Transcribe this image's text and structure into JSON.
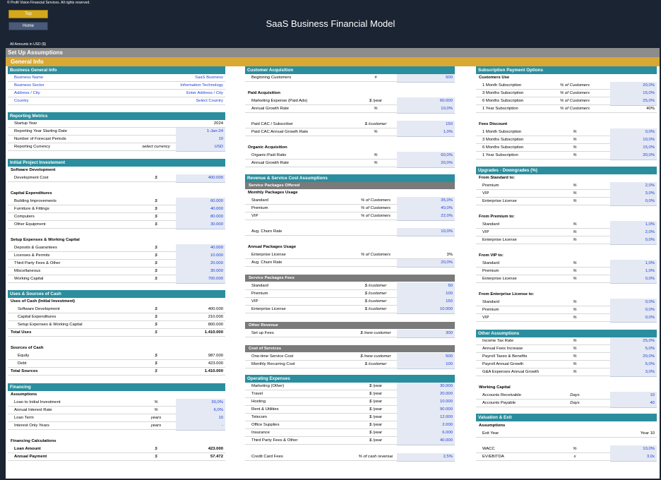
{
  "header": {
    "copyright": "© Profit Vision Financial Services. All rights reserved.",
    "top_button": "Top",
    "home_button": "Home",
    "title": "SaaS Business Financial Model",
    "amounts_note": "All Amounts in  USD ($)",
    "section": "Set Up Assumptions",
    "subsection": "General Info"
  },
  "left": {
    "business": {
      "title": "Business General Info",
      "rows": [
        {
          "label": "Business Name",
          "value": "SaaS Business"
        },
        {
          "label": "Business Sector",
          "value": "Information Technology"
        },
        {
          "label": "Address / City",
          "value": "Enter Address / City"
        },
        {
          "label": "Country",
          "value": "Select Country"
        }
      ]
    },
    "reporting": {
      "title": "Reporting Metrics",
      "rows": [
        {
          "label": "Startup Year",
          "unit": "",
          "value": "2024"
        },
        {
          "label": "Reporting Year Starting Date",
          "unit": "",
          "value": "1-Jan-24"
        },
        {
          "label": "Number of Forecast Periods",
          "unit": "",
          "value": "10"
        },
        {
          "label": "Reporting Currency",
          "unit": "select currency",
          "value": "USD"
        }
      ]
    },
    "initial": {
      "title": "Initial Project Investement",
      "software_title": "Software Development",
      "dev_cost": {
        "label": "Development Cost",
        "unit": "$",
        "value": "400.000"
      },
      "capex_title": "Capital Expenditures",
      "capex": [
        {
          "label": "Building Improvements",
          "unit": "$",
          "value": "60.000"
        },
        {
          "label": "Furniture & Fittings",
          "unit": "$",
          "value": "40.000"
        },
        {
          "label": "Computers",
          "unit": "$",
          "value": "80.000"
        },
        {
          "label": "Other Equipment",
          "unit": "$",
          "value": "30.000"
        }
      ],
      "setup_title": "Setup Expenses & Working Capital",
      "setup": [
        {
          "label": "Deposits & Guarantees",
          "unit": "$",
          "value": "40.000"
        },
        {
          "label": "Licenses & Permits",
          "unit": "$",
          "value": "10.000"
        },
        {
          "label": "Third Party Fees & Other",
          "unit": "$",
          "value": "20.000"
        },
        {
          "label": "Miscellaneous",
          "unit": "$",
          "value": "30.000"
        },
        {
          "label": "Working Capital",
          "unit": "$",
          "value": "700.000"
        }
      ]
    },
    "uses": {
      "title": "Uses & Sources of Cash",
      "uses_title": "Uses of Cash (Initial Investment)",
      "uses_rows": [
        {
          "label": "Software Development",
          "unit": "$",
          "value": "400.000"
        },
        {
          "label": "Capital Expenditures",
          "unit": "$",
          "value": "210.000"
        },
        {
          "label": "Setup Expenses & Working Capital",
          "unit": "$",
          "value": "800.000"
        }
      ],
      "total_uses": {
        "label": "Total Uses",
        "unit": "$",
        "value": "1.410.000"
      },
      "sources_title": "Sources of Cash",
      "sources_rows": [
        {
          "label": "Equity",
          "unit": "$",
          "value": "987.000"
        },
        {
          "label": "Debt",
          "unit": "$",
          "value": "423.000"
        }
      ],
      "total_sources": {
        "label": "Total Sources",
        "unit": "$",
        "value": "1.410.000"
      }
    },
    "financing": {
      "title": "Financing",
      "assump_title": "Assumptions",
      "rows": [
        {
          "label": "Loan to Initial Investment",
          "unit": "%",
          "value": "30,0%"
        },
        {
          "label": "Annual Interest Rate",
          "unit": "%",
          "value": "6,0%"
        },
        {
          "label": "Loan Term",
          "unit": "years",
          "value": "10"
        },
        {
          "label": "Interest Only Years",
          "unit": "years",
          "value": "-"
        }
      ],
      "calc_title": "Financing Calculations",
      "calc": [
        {
          "label": "Loan Amount",
          "unit": "$",
          "value": "423.000"
        },
        {
          "label": "Annual Payment",
          "unit": "$",
          "value": "57.472"
        }
      ]
    }
  },
  "mid": {
    "cust": {
      "title": "Customer Acquisition",
      "beginning": {
        "label": "Beginning Customers",
        "unit": "#",
        "value": "500"
      },
      "paid_title": "Paid Acquisition",
      "paid": [
        {
          "label": "Marketing Expense (Paid Ads)",
          "unit": "$ /year",
          "value": "60.000"
        },
        {
          "label": "Annual Growth Rate",
          "unit": "%",
          "value": "10,0%"
        }
      ],
      "cac": [
        {
          "label": "Paid CAC / Subscriber",
          "unit": "$ /customer",
          "value": "150"
        },
        {
          "label": "Paid CAC Annual Growth Rate",
          "unit": "%",
          "value": "1,0%"
        }
      ],
      "org_title": "Organic Acquisition",
      "org": [
        {
          "label": "Organic:Paid Ratio",
          "unit": "%",
          "value": "60,0%"
        },
        {
          "label": "Annual Growth Rate",
          "unit": "%",
          "value": "20,0%"
        }
      ]
    },
    "rev": {
      "title": "Revenue & Service Cost Assumptions",
      "spo_title": "Service Packages Offered",
      "monthly_title": "Monthly Packages Usage",
      "monthly": [
        {
          "label": "Standard",
          "unit": "% of Customers",
          "value": "35,0%"
        },
        {
          "label": "Premium",
          "unit": "% of Customers",
          "value": "40,0%"
        },
        {
          "label": "VIP",
          "unit": "% of Customers",
          "value": "22,0%"
        }
      ],
      "m_churn": {
        "label": "Avg. Churn Rate",
        "unit": "",
        "value": "10,0%"
      },
      "annual_title": "Annual Packages Usage",
      "annual": {
        "label": "Enterprise License",
        "unit": "% of Customers",
        "value": "3%"
      },
      "a_churn": {
        "label": "Avg. Churn Rate",
        "unit": "",
        "value": "20,0%"
      },
      "fees_title": "Service Packages Fees",
      "fees": [
        {
          "label": "Standard",
          "unit": "$ /customer",
          "value": "50"
        },
        {
          "label": "Premium",
          "unit": "$ /customer",
          "value": "100"
        },
        {
          "label": "VIP",
          "unit": "$ /customer",
          "value": "150"
        },
        {
          "label": "Enterprise License",
          "unit": "$ /customer",
          "value": "10.000"
        }
      ],
      "other_title": "Other Revenue",
      "setup": {
        "label": "Set up Fees",
        "unit": "$ /new customer",
        "value": "300"
      },
      "cost_title": "Cost of Services",
      "cost": [
        {
          "label": "One-time Service Cost",
          "unit": "$ /new customer",
          "value": "500"
        },
        {
          "label": "Monthly Recurring Cost",
          "unit": "$ /customer",
          "value": "100"
        }
      ]
    },
    "opex": {
      "title": "Operating Expenses",
      "rows": [
        {
          "label": "Marketing (Other)",
          "unit": "$ /year",
          "value": "30.000"
        },
        {
          "label": "Travel",
          "unit": "$ /year",
          "value": "20.000"
        },
        {
          "label": "Hosting",
          "unit": "$ /year",
          "value": "10.000"
        },
        {
          "label": "Rent & Utilities",
          "unit": "$ /year",
          "value": "90.000"
        },
        {
          "label": "Telecom",
          "unit": "$ /year",
          "value": "12.000"
        },
        {
          "label": "Office Supplies",
          "unit": "$ /year",
          "value": "2.000"
        },
        {
          "label": "Insurance",
          "unit": "$ /year",
          "value": "6.000"
        },
        {
          "label": "Third Party Fees & Other",
          "unit": "$ /year",
          "value": "40.000"
        }
      ],
      "cc": {
        "label": "Credit Card Fees",
        "unit": "% of cash revenue",
        "value": "2,5%"
      }
    }
  },
  "right": {
    "subs": {
      "title": "Subscription Payment Options",
      "cu_title": "Customers Use",
      "cu": [
        {
          "label": "1 Month Subscription",
          "unit": "% of Customers",
          "value": "20,0%"
        },
        {
          "label": "3 Months Subscription",
          "unit": "% of Customers",
          "value": "15,0%"
        },
        {
          "label": "6 Months Subscription",
          "unit": "% of Customers",
          "value": "25,0%"
        },
        {
          "label": "1 Year Subscription",
          "unit": "% of Customers",
          "value": "40%"
        }
      ],
      "fd_title": "Fees Discount",
      "fd": [
        {
          "label": "1 Month Subscription",
          "unit": "%",
          "value": "0,0%"
        },
        {
          "label": "3 Months Subscription",
          "unit": "%",
          "value": "10,0%"
        },
        {
          "label": "6 Months Subscription",
          "unit": "%",
          "value": "15,0%"
        },
        {
          "label": "1 Year Subscription",
          "unit": "%",
          "value": "30,0%"
        }
      ]
    },
    "upg": {
      "title": "Upgrades - Downgrades (%)",
      "groups": [
        {
          "title": "From Standard to:",
          "rows": [
            {
              "label": "Premium",
              "unit": "%",
              "value": "2,0%"
            },
            {
              "label": "VIP",
              "unit": "%",
              "value": "3,0%"
            },
            {
              "label": "Enterprise License",
              "unit": "%",
              "value": "0,0%"
            }
          ]
        },
        {
          "title": "From Premium to:",
          "rows": [
            {
              "label": "Standard",
              "unit": "%",
              "value": "1,0%"
            },
            {
              "label": "VIP",
              "unit": "%",
              "value": "2,0%"
            },
            {
              "label": "Enterprise License",
              "unit": "%",
              "value": "0,0%"
            }
          ]
        },
        {
          "title": "From VIP to:",
          "rows": [
            {
              "label": "Standard",
              "unit": "%",
              "value": "1,0%"
            },
            {
              "label": "Premium",
              "unit": "%",
              "value": "1,0%"
            },
            {
              "label": "Enterprise License",
              "unit": "%",
              "value": "0,0%"
            }
          ]
        },
        {
          "title": "From Enterprise License to:",
          "rows": [
            {
              "label": "Standard",
              "unit": "%",
              "value": "0,0%"
            },
            {
              "label": "Premium",
              "unit": "%",
              "value": "0,0%"
            },
            {
              "label": "VIP",
              "unit": "%",
              "value": "0,0%"
            }
          ]
        }
      ]
    },
    "other": {
      "title": "Other Assumptions",
      "rows": [
        {
          "label": "Income Tax Rate",
          "unit": "%",
          "value": "25,0%"
        },
        {
          "label": "Annual Fees Increase",
          "unit": "%",
          "value": "5,0%"
        },
        {
          "label": "Payroll Taxes & Benefits",
          "unit": "%",
          "value": "20,0%"
        },
        {
          "label": "Payroll Annual Growth",
          "unit": "%",
          "value": "5,0%"
        },
        {
          "label": "G&A Expenses Annual Growth",
          "unit": "%",
          "value": "3,0%"
        }
      ],
      "wc_title": "Working Capital",
      "wc": [
        {
          "label": "Accounts Receivable",
          "unit": "Days",
          "value": "10"
        },
        {
          "label": "Accounts Payable",
          "unit": "Days",
          "value": "40"
        }
      ]
    },
    "val": {
      "title": "Valuation & Exit",
      "assump_title": "Assumptions",
      "exit": {
        "label": "Exit Year",
        "unit": "",
        "value": "Year 10"
      },
      "rows": [
        {
          "label": "WACC",
          "unit": "%",
          "value": "10,0%"
        },
        {
          "label": "EV/EBITDA",
          "unit": "x",
          "value": "3,0x"
        }
      ]
    }
  }
}
